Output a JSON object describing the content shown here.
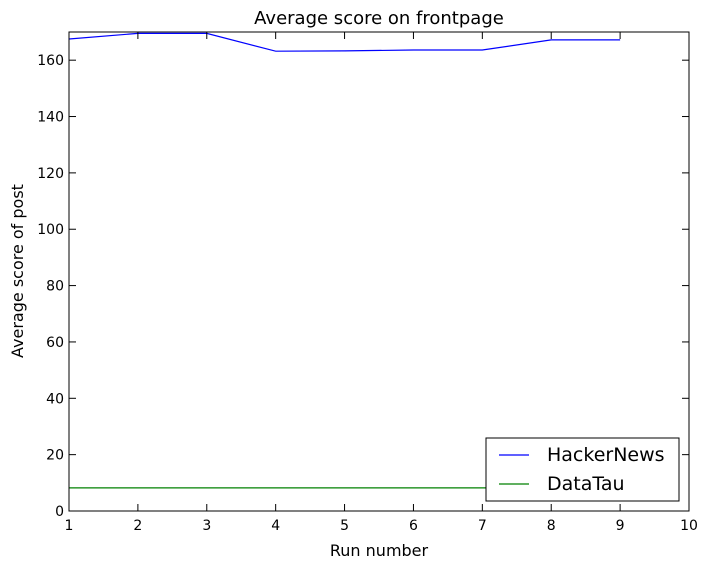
{
  "chart_data": {
    "type": "line",
    "title": "Average score on frontpage",
    "xlabel": "Run number",
    "ylabel": "Average score of post",
    "xlim": [
      1,
      10
    ],
    "ylim": [
      0,
      170
    ],
    "xticks": [
      1,
      2,
      3,
      4,
      5,
      6,
      7,
      8,
      9,
      10
    ],
    "yticks": [
      0,
      20,
      40,
      60,
      80,
      100,
      120,
      140,
      160
    ],
    "grid": false,
    "legend_position": "lower-right",
    "series": [
      {
        "name": "HackerNews",
        "color": "#0000ff",
        "x": [
          1,
          2,
          3,
          4,
          5,
          6,
          7,
          8,
          9
        ],
        "y": [
          167.5,
          169.5,
          169.5,
          163.2,
          163.3,
          163.6,
          163.6,
          167.2,
          167.2
        ]
      },
      {
        "name": "DataTau",
        "color": "#008000",
        "x": [
          1,
          2,
          3,
          4,
          5,
          6,
          7,
          8,
          9
        ],
        "y": [
          8.2,
          8.2,
          8.2,
          8.2,
          8.2,
          8.2,
          8.2,
          8.2,
          8.2
        ]
      }
    ]
  }
}
